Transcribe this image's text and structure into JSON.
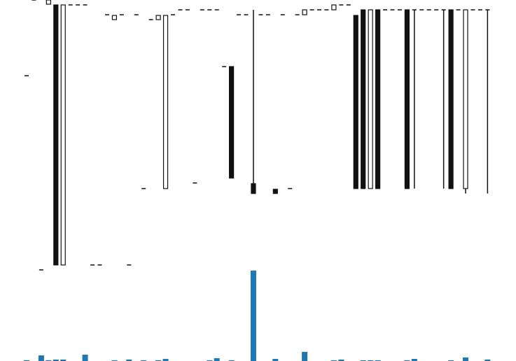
{
  "chart_data": {
    "type": "candlestick",
    "open": [
      292,
      400,
      15,
      394,
      393,
      22,
      393,
      393,
      393,
      22,
      22,
      379,
      372,
      379,
      22,
      379,
      131,
      372,
      372,
      131,
      379,
      386,
      386,
      139,
      386,
      386,
      386,
      305,
      305,
      379,
      379,
      138,
      379,
      379,
      130,
      379,
      131,
      379,
      379,
      386,
      386,
      386,
      386,
      393,
      393,
      378,
      386,
      131,
      386,
      386,
      386,
      386,
      386,
      386,
      386,
      386,
      386,
      386,
      386,
      386,
      131,
      386,
      386,
      386
    ],
    "high": [
      292,
      400,
      15,
      400,
      393,
      393,
      393,
      393,
      393,
      22,
      22,
      379,
      378,
      379,
      22,
      379,
      131,
      372,
      378,
      378,
      379,
      386,
      386,
      139,
      386,
      386,
      386,
      305,
      305,
      379,
      379,
      386,
      379,
      379,
      130,
      379,
      131,
      379,
      386,
      386,
      386,
      386,
      393,
      393,
      393,
      378,
      386,
      386,
      386,
      386,
      386,
      386,
      386,
      386,
      386,
      386,
      386,
      386,
      386,
      386,
      386,
      386,
      386,
      386
    ],
    "low": [
      292,
      400,
      15,
      394,
      22,
      22,
      393,
      393,
      393,
      22,
      22,
      379,
      372,
      379,
      22,
      379,
      131,
      372,
      372,
      131,
      379,
      386,
      386,
      139,
      386,
      386,
      386,
      305,
      146,
      379,
      379,
      124,
      379,
      379,
      124,
      379,
      131,
      379,
      379,
      386,
      386,
      386,
      386,
      393,
      393,
      131,
      131,
      131,
      131,
      386,
      386,
      386,
      131,
      131,
      386,
      386,
      386,
      131,
      131,
      386,
      124,
      386,
      386,
      124
    ],
    "close": [
      292,
      400,
      15,
      400,
      22,
      393,
      393,
      393,
      393,
      22,
      22,
      379,
      378,
      379,
      22,
      379,
      131,
      372,
      378,
      378,
      379,
      386,
      386,
      139,
      386,
      386,
      386,
      305,
      146,
      379,
      379,
      124,
      379,
      379,
      124,
      379,
      131,
      379,
      386,
      386,
      386,
      386,
      393,
      393,
      393,
      131,
      131,
      386,
      131,
      386,
      386,
      386,
      131,
      386,
      386,
      386,
      386,
      386,
      131,
      386,
      386,
      386,
      386,
      386
    ],
    "volume": [
      1,
      0,
      8,
      1,
      2,
      2,
      0,
      0,
      9,
      0,
      0,
      0,
      1,
      0,
      2,
      0,
      1,
      0,
      1,
      3,
      0,
      0,
      0,
      0,
      0,
      1,
      4,
      0,
      1,
      0,
      0,
      129,
      0,
      0,
      3,
      0,
      0,
      0,
      13,
      0,
      0,
      0,
      1,
      2,
      0,
      0,
      1,
      1,
      1,
      0,
      0,
      0,
      1,
      3,
      0,
      0,
      0,
      0,
      1,
      0,
      5,
      0,
      0,
      2
    ],
    "up_color": "#ffffff",
    "down_color": "#111111",
    "volume_color": "#1f77b4",
    "ylim": [
      10,
      400
    ],
    "volume_ylim": [
      0,
      130
    ]
  }
}
